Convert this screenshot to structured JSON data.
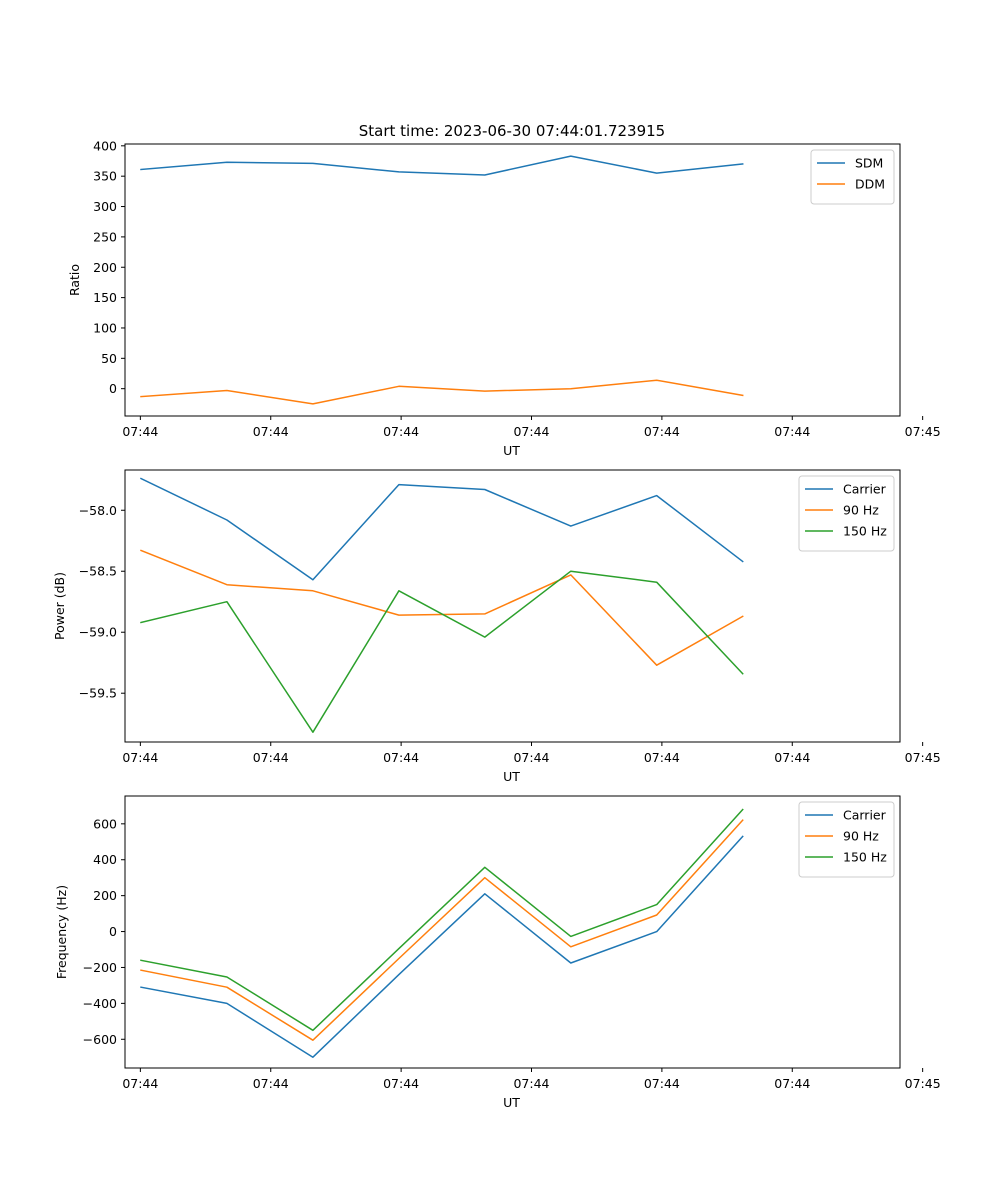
{
  "title": "Start time: 2023-06-30 07:44:01.723915",
  "colors": {
    "blue": "#1f77b4",
    "orange": "#ff7f0e",
    "green": "#2ca02c"
  },
  "chart_data": [
    {
      "type": "line",
      "title": "Start time: 2023-06-30 07:44:01.723915",
      "xlabel": "UT",
      "ylabel": "Ratio",
      "x": [
        1,
        2,
        3,
        4,
        5,
        6,
        7,
        8
      ],
      "xlim": [
        0.8141,
        9.8301
      ],
      "xticks": [
        {
          "x": 0.9928,
          "label": "07:44"
        },
        {
          "x": 2.5096,
          "label": "07:44"
        },
        {
          "x": 4.0264,
          "label": "07:44"
        },
        {
          "x": 5.5432,
          "label": "07:44"
        },
        {
          "x": 7.06,
          "label": "07:44"
        },
        {
          "x": 8.5768,
          "label": "07:44"
        },
        {
          "x": 10.0936,
          "label": "07:45"
        }
      ],
      "ylim": [
        -45,
        403
      ],
      "yticks": [
        0,
        50,
        100,
        150,
        200,
        250,
        300,
        350,
        400
      ],
      "grid": false,
      "legend": "upper right",
      "series": [
        {
          "name": "SDM",
          "color": "#1f77b4",
          "values": [
            361,
            373,
            371,
            357,
            352,
            383,
            355,
            370
          ]
        },
        {
          "name": "DDM",
          "color": "#ff7f0e",
          "values": [
            -13,
            -3,
            -25,
            4,
            -4,
            0,
            14,
            -11
          ]
        }
      ]
    },
    {
      "type": "line",
      "xlabel": "UT",
      "ylabel": "Power (dB)",
      "x": [
        1,
        2,
        3,
        4,
        5,
        6,
        7,
        8
      ],
      "xlim": [
        0.8141,
        9.8301
      ],
      "xticks": [
        {
          "x": 0.9928,
          "label": "07:44"
        },
        {
          "x": 2.5096,
          "label": "07:44"
        },
        {
          "x": 4.0264,
          "label": "07:44"
        },
        {
          "x": 5.5432,
          "label": "07:44"
        },
        {
          "x": 7.06,
          "label": "07:44"
        },
        {
          "x": 8.5768,
          "label": "07:44"
        },
        {
          "x": 10.0936,
          "label": "07:45"
        }
      ],
      "ylim": [
        -59.9,
        -57.67
      ],
      "yticks": [
        {
          "v": -59.5,
          "label": "−59.5"
        },
        {
          "v": -59.0,
          "label": "−59.0"
        },
        {
          "v": -58.5,
          "label": "−58.5"
        },
        {
          "v": -58.0,
          "label": "−58.0"
        }
      ],
      "grid": false,
      "legend": "upper right",
      "series": [
        {
          "name": "Carrier",
          "color": "#1f77b4",
          "values": [
            -57.74,
            -58.08,
            -58.57,
            -57.79,
            -57.83,
            -58.13,
            -57.88,
            -58.42
          ]
        },
        {
          "name": "90 Hz",
          "color": "#ff7f0e",
          "values": [
            -58.33,
            -58.61,
            -58.66,
            -58.86,
            -58.85,
            -58.53,
            -59.27,
            -58.87
          ]
        },
        {
          "name": "150 Hz",
          "color": "#2ca02c",
          "values": [
            -58.92,
            -58.75,
            -59.82,
            -58.66,
            -59.04,
            -58.5,
            -58.59,
            -59.34
          ]
        }
      ]
    },
    {
      "type": "line",
      "xlabel": "UT",
      "ylabel": "Frequency (Hz)",
      "x": [
        1,
        2,
        3,
        4,
        5,
        6,
        7,
        8
      ],
      "xlim": [
        0.8141,
        9.8301
      ],
      "xticks": [
        {
          "x": 0.9928,
          "label": "07:44"
        },
        {
          "x": 2.5096,
          "label": "07:44"
        },
        {
          "x": 4.0264,
          "label": "07:44"
        },
        {
          "x": 5.5432,
          "label": "07:44"
        },
        {
          "x": 7.06,
          "label": "07:44"
        },
        {
          "x": 8.5768,
          "label": "07:44"
        },
        {
          "x": 10.0936,
          "label": "07:45"
        }
      ],
      "ylim": [
        -760,
        755
      ],
      "yticks": [
        {
          "v": -600,
          "label": "−600"
        },
        {
          "v": -400,
          "label": "−400"
        },
        {
          "v": -200,
          "label": "−200"
        },
        {
          "v": 0,
          "label": "0"
        },
        {
          "v": 200,
          "label": "200"
        },
        {
          "v": 400,
          "label": "400"
        },
        {
          "v": 600,
          "label": "600"
        }
      ],
      "grid": false,
      "legend": "upper right",
      "series": [
        {
          "name": "Carrier",
          "color": "#1f77b4",
          "values": [
            -310,
            -400,
            -700,
            -240,
            210,
            -175,
            0,
            530
          ]
        },
        {
          "name": "90 Hz",
          "color": "#ff7f0e",
          "values": [
            -215,
            -310,
            -605,
            -150,
            300,
            -85,
            92,
            620
          ]
        },
        {
          "name": "150 Hz",
          "color": "#2ca02c",
          "values": [
            -160,
            -253,
            -550,
            -95,
            358,
            -27,
            150,
            680
          ]
        }
      ]
    }
  ]
}
